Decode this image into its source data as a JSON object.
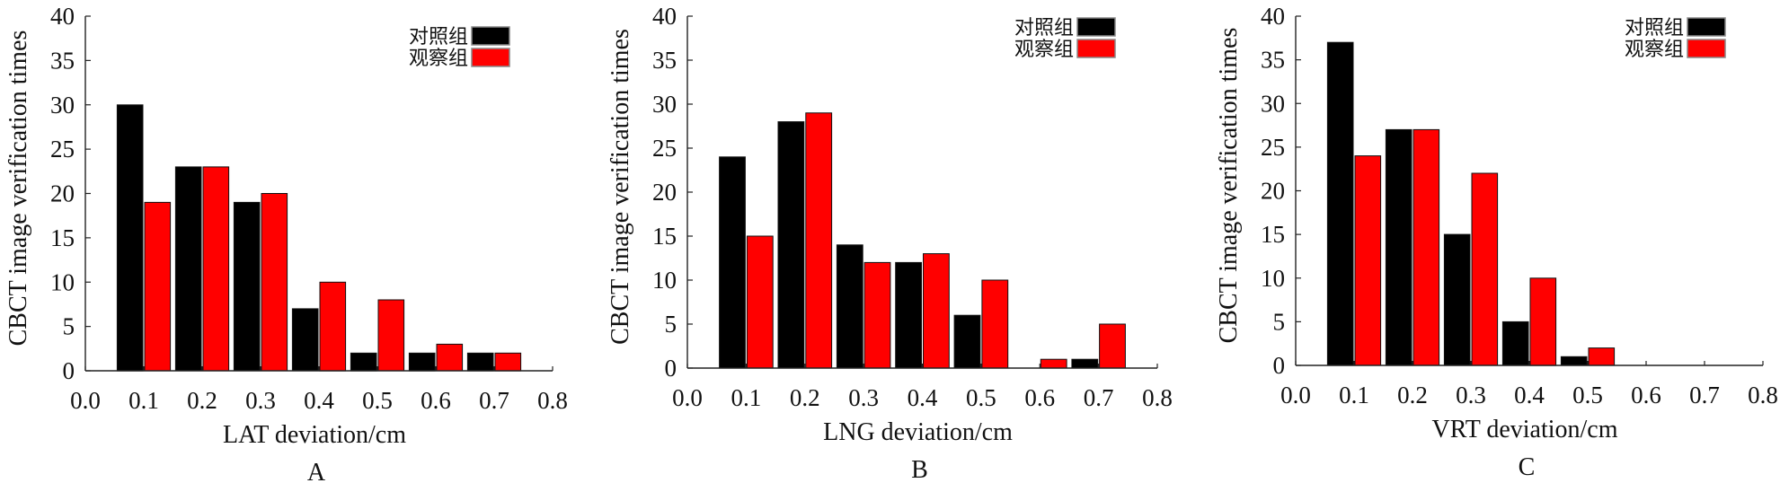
{
  "colors": {
    "control": "#000000",
    "observation": "#ff0000",
    "axis": "#222222"
  },
  "chart_data": [
    {
      "type": "bar",
      "panel_label": "A",
      "xlabel": "LAT deviation/cm",
      "ylabel": "CBCT image verification times",
      "x": [
        0.1,
        0.2,
        0.3,
        0.4,
        0.5,
        0.6,
        0.7
      ],
      "xlim": [
        0.0,
        0.8
      ],
      "ylim": [
        0,
        40
      ],
      "xticks": [
        "0.0",
        "0.1",
        "0.2",
        "0.3",
        "0.4",
        "0.5",
        "0.6",
        "0.7",
        "0.8"
      ],
      "yticks": [
        "0",
        "5",
        "10",
        "15",
        "20",
        "25",
        "30",
        "35",
        "40"
      ],
      "legend_position": "top-right",
      "series": [
        {
          "name": "对照组",
          "values": [
            30,
            23,
            19,
            7,
            2,
            2,
            2
          ]
        },
        {
          "name": "观察组",
          "values": [
            19,
            23,
            20,
            10,
            8,
            3,
            2
          ]
        }
      ]
    },
    {
      "type": "bar",
      "panel_label": "B",
      "xlabel": "LNG deviation/cm",
      "ylabel": "CBCT image verification times",
      "x": [
        0.1,
        0.2,
        0.3,
        0.4,
        0.5,
        0.6,
        0.7
      ],
      "xlim": [
        0.0,
        0.8
      ],
      "ylim": [
        0,
        40
      ],
      "xticks": [
        "0.0",
        "0.1",
        "0.2",
        "0.3",
        "0.4",
        "0.5",
        "0.6",
        "0.7",
        "0.8"
      ],
      "yticks": [
        "0",
        "5",
        "10",
        "15",
        "20",
        "25",
        "30",
        "35",
        "40"
      ],
      "legend_position": "top-right",
      "series": [
        {
          "name": "对照组",
          "values": [
            24,
            28,
            14,
            12,
            6,
            0,
            1
          ]
        },
        {
          "name": "观察组",
          "values": [
            15,
            29,
            12,
            13,
            10,
            1,
            5
          ]
        }
      ]
    },
    {
      "type": "bar",
      "panel_label": "C",
      "xlabel": "VRT deviation/cm",
      "ylabel": "CBCT image verification times",
      "x": [
        0.1,
        0.2,
        0.3,
        0.4,
        0.5,
        0.6,
        0.7
      ],
      "xlim": [
        0.0,
        0.8
      ],
      "ylim": [
        0,
        40
      ],
      "xticks": [
        "0.0",
        "0.1",
        "0.2",
        "0.3",
        "0.4",
        "0.5",
        "0.6",
        "0.7",
        "0.8"
      ],
      "yticks": [
        "0",
        "5",
        "10",
        "15",
        "20",
        "25",
        "30",
        "35",
        "40"
      ],
      "legend_position": "top-right",
      "series": [
        {
          "name": "对照组",
          "values": [
            37,
            27,
            15,
            5,
            1,
            0,
            0
          ]
        },
        {
          "name": "观察组",
          "values": [
            24,
            27,
            22,
            10,
            2,
            0,
            0
          ]
        }
      ]
    }
  ]
}
